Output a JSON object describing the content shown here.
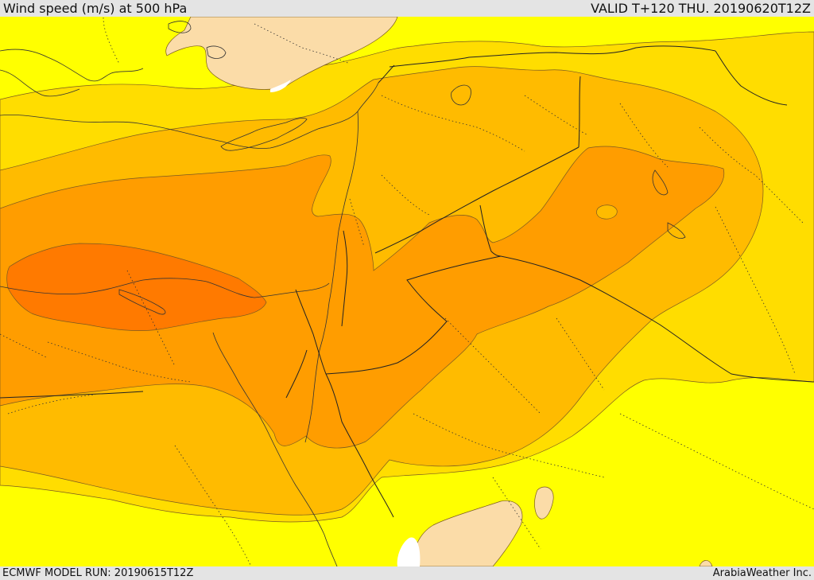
{
  "header": {
    "title": "Wind speed (m/s) at 500 hPa",
    "valid": "VALID T+120 THU. 20190620T12Z"
  },
  "footer": {
    "model_run": "ECMWF MODEL RUN: 20190615T12Z",
    "provider": "ArabiaWeather Inc."
  },
  "map": {
    "variable": "Wind speed",
    "units": "m/s",
    "level": "500 hPa",
    "colors": {
      "calm": "#fbdca8",
      "light": "#ffff00",
      "moderate": "#ffdd00",
      "fresh": "#ffbb00",
      "strong": "#ff9d00",
      "stronger": "#ff7a00",
      "sea_gap": "#ffffff"
    }
  }
}
